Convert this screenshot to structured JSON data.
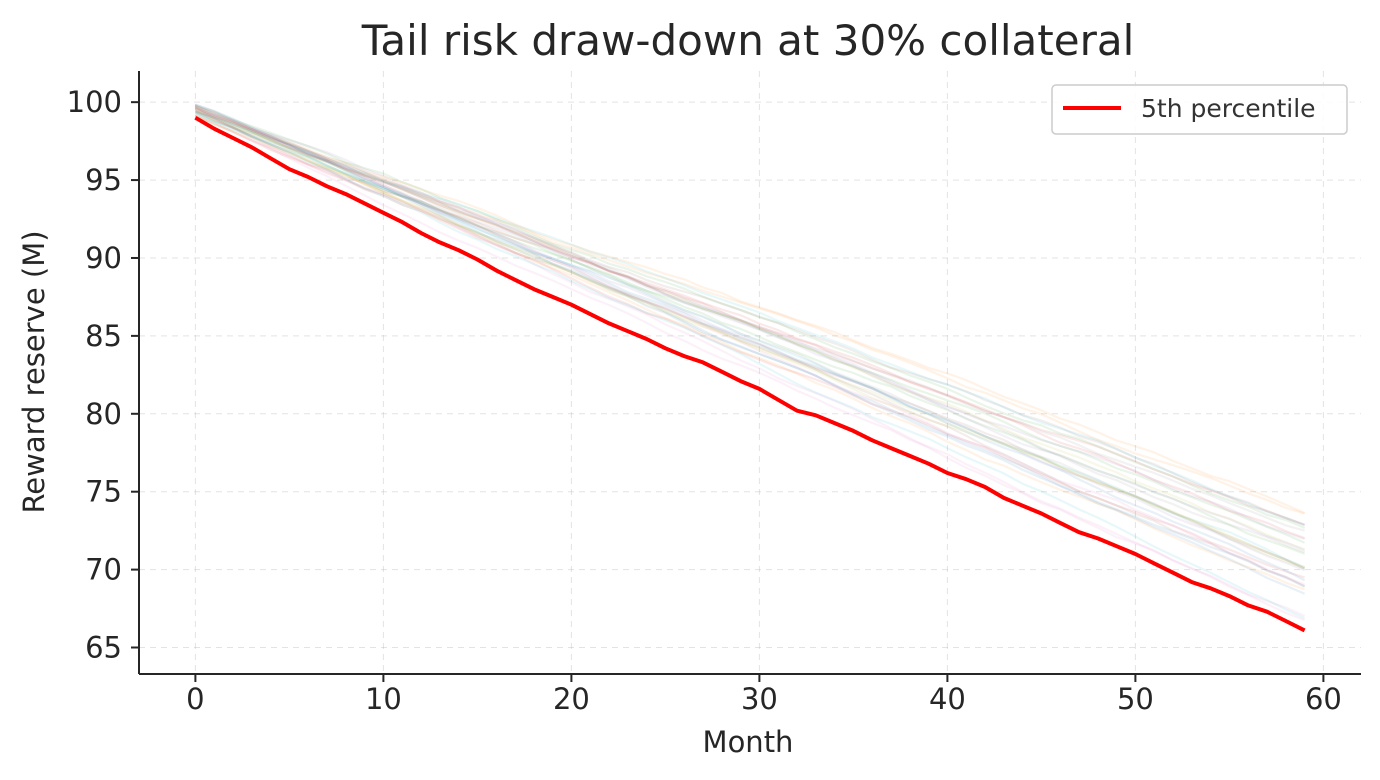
{
  "chart_data": {
    "type": "line",
    "title": "Tail risk draw-down at 30% collateral",
    "xlabel": "Month",
    "ylabel": "Reward reserve (M)",
    "xlim": [
      -3,
      62
    ],
    "ylim": [
      63.3,
      102
    ],
    "x_ticks": [
      0,
      10,
      20,
      30,
      40,
      50,
      60
    ],
    "y_ticks": [
      65,
      70,
      75,
      80,
      85,
      90,
      95,
      100
    ],
    "grid": true,
    "legend": {
      "placement": "top-right",
      "entries": [
        "5th percentile"
      ]
    },
    "series": [
      {
        "name": "5th percentile",
        "color": "#ff0000",
        "x": [
          0,
          1,
          2,
          3,
          4,
          5,
          6,
          7,
          8,
          9,
          10,
          11,
          12,
          13,
          14,
          15,
          16,
          17,
          18,
          19,
          20,
          21,
          22,
          23,
          24,
          25,
          26,
          27,
          28,
          29,
          30,
          31,
          32,
          33,
          34,
          35,
          36,
          37,
          38,
          39,
          40,
          41,
          42,
          43,
          44,
          45,
          46,
          47,
          48,
          49,
          50,
          51,
          52,
          53,
          54,
          55,
          56,
          57,
          58,
          59
        ],
        "values": [
          99.0,
          98.3,
          97.7,
          97.1,
          96.4,
          95.7,
          95.2,
          94.6,
          94.1,
          93.5,
          92.9,
          92.3,
          91.6,
          91.0,
          90.5,
          89.9,
          89.2,
          88.6,
          88.0,
          87.5,
          87.0,
          86.4,
          85.8,
          85.3,
          84.8,
          84.2,
          83.7,
          83.3,
          82.7,
          82.1,
          81.6,
          80.9,
          80.2,
          79.9,
          79.4,
          78.9,
          78.3,
          77.8,
          77.3,
          76.8,
          76.2,
          75.8,
          75.3,
          74.6,
          74.1,
          73.6,
          73.0,
          72.4,
          72.0,
          71.5,
          71.0,
          70.4,
          69.8,
          69.2,
          68.8,
          68.3,
          67.7,
          67.3,
          66.7,
          66.1
        ]
      }
    ],
    "simulation_paths": {
      "count": 30,
      "opacity": 0.1,
      "palette": [
        "#1f77b4",
        "#ff7f0e",
        "#2ca02c",
        "#d62728",
        "#9467bd",
        "#8c564b",
        "#e377c2",
        "#7f7f7f",
        "#bcbd22",
        "#17becf"
      ],
      "start_range": [
        99.1,
        99.9
      ],
      "end_range": [
        65.9,
        74.6
      ]
    }
  }
}
